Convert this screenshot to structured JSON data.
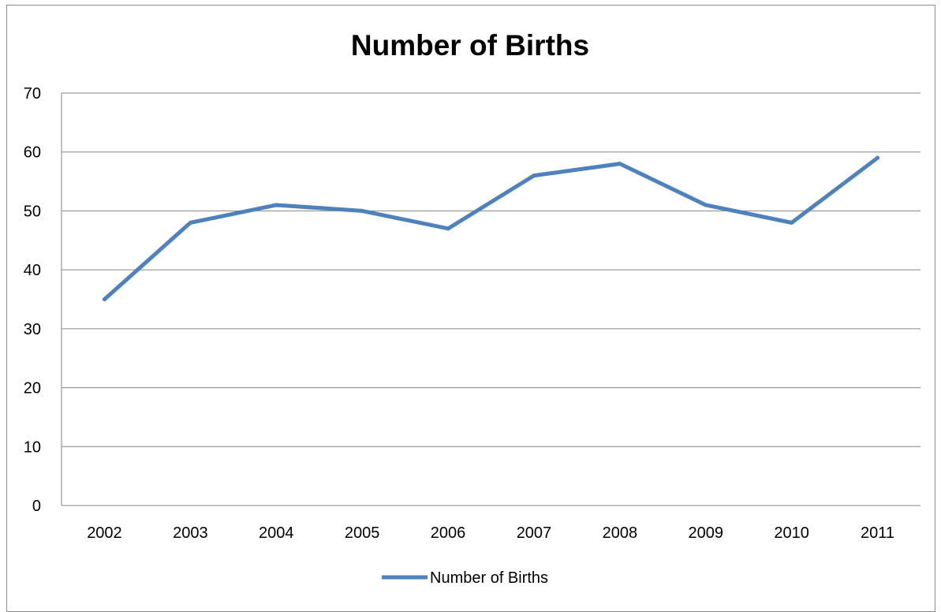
{
  "chart_data": {
    "type": "line",
    "title": "Number of Births",
    "xlabel": "",
    "ylabel": "",
    "categories": [
      "2002",
      "2003",
      "2004",
      "2005",
      "2006",
      "2007",
      "2008",
      "2009",
      "2010",
      "2011"
    ],
    "series": [
      {
        "name": "Number of Births",
        "values": [
          35,
          48,
          51,
          50,
          47,
          56,
          58,
          51,
          48,
          59
        ]
      }
    ],
    "ylim": [
      0,
      70
    ],
    "yticks": [
      "0",
      "10",
      "20",
      "30",
      "40",
      "50",
      "60",
      "70"
    ],
    "grid": true,
    "legend_position": "bottom",
    "colors": {
      "series": "#4f81bd",
      "grid": "#868686",
      "border": "#8c8c8c"
    }
  }
}
